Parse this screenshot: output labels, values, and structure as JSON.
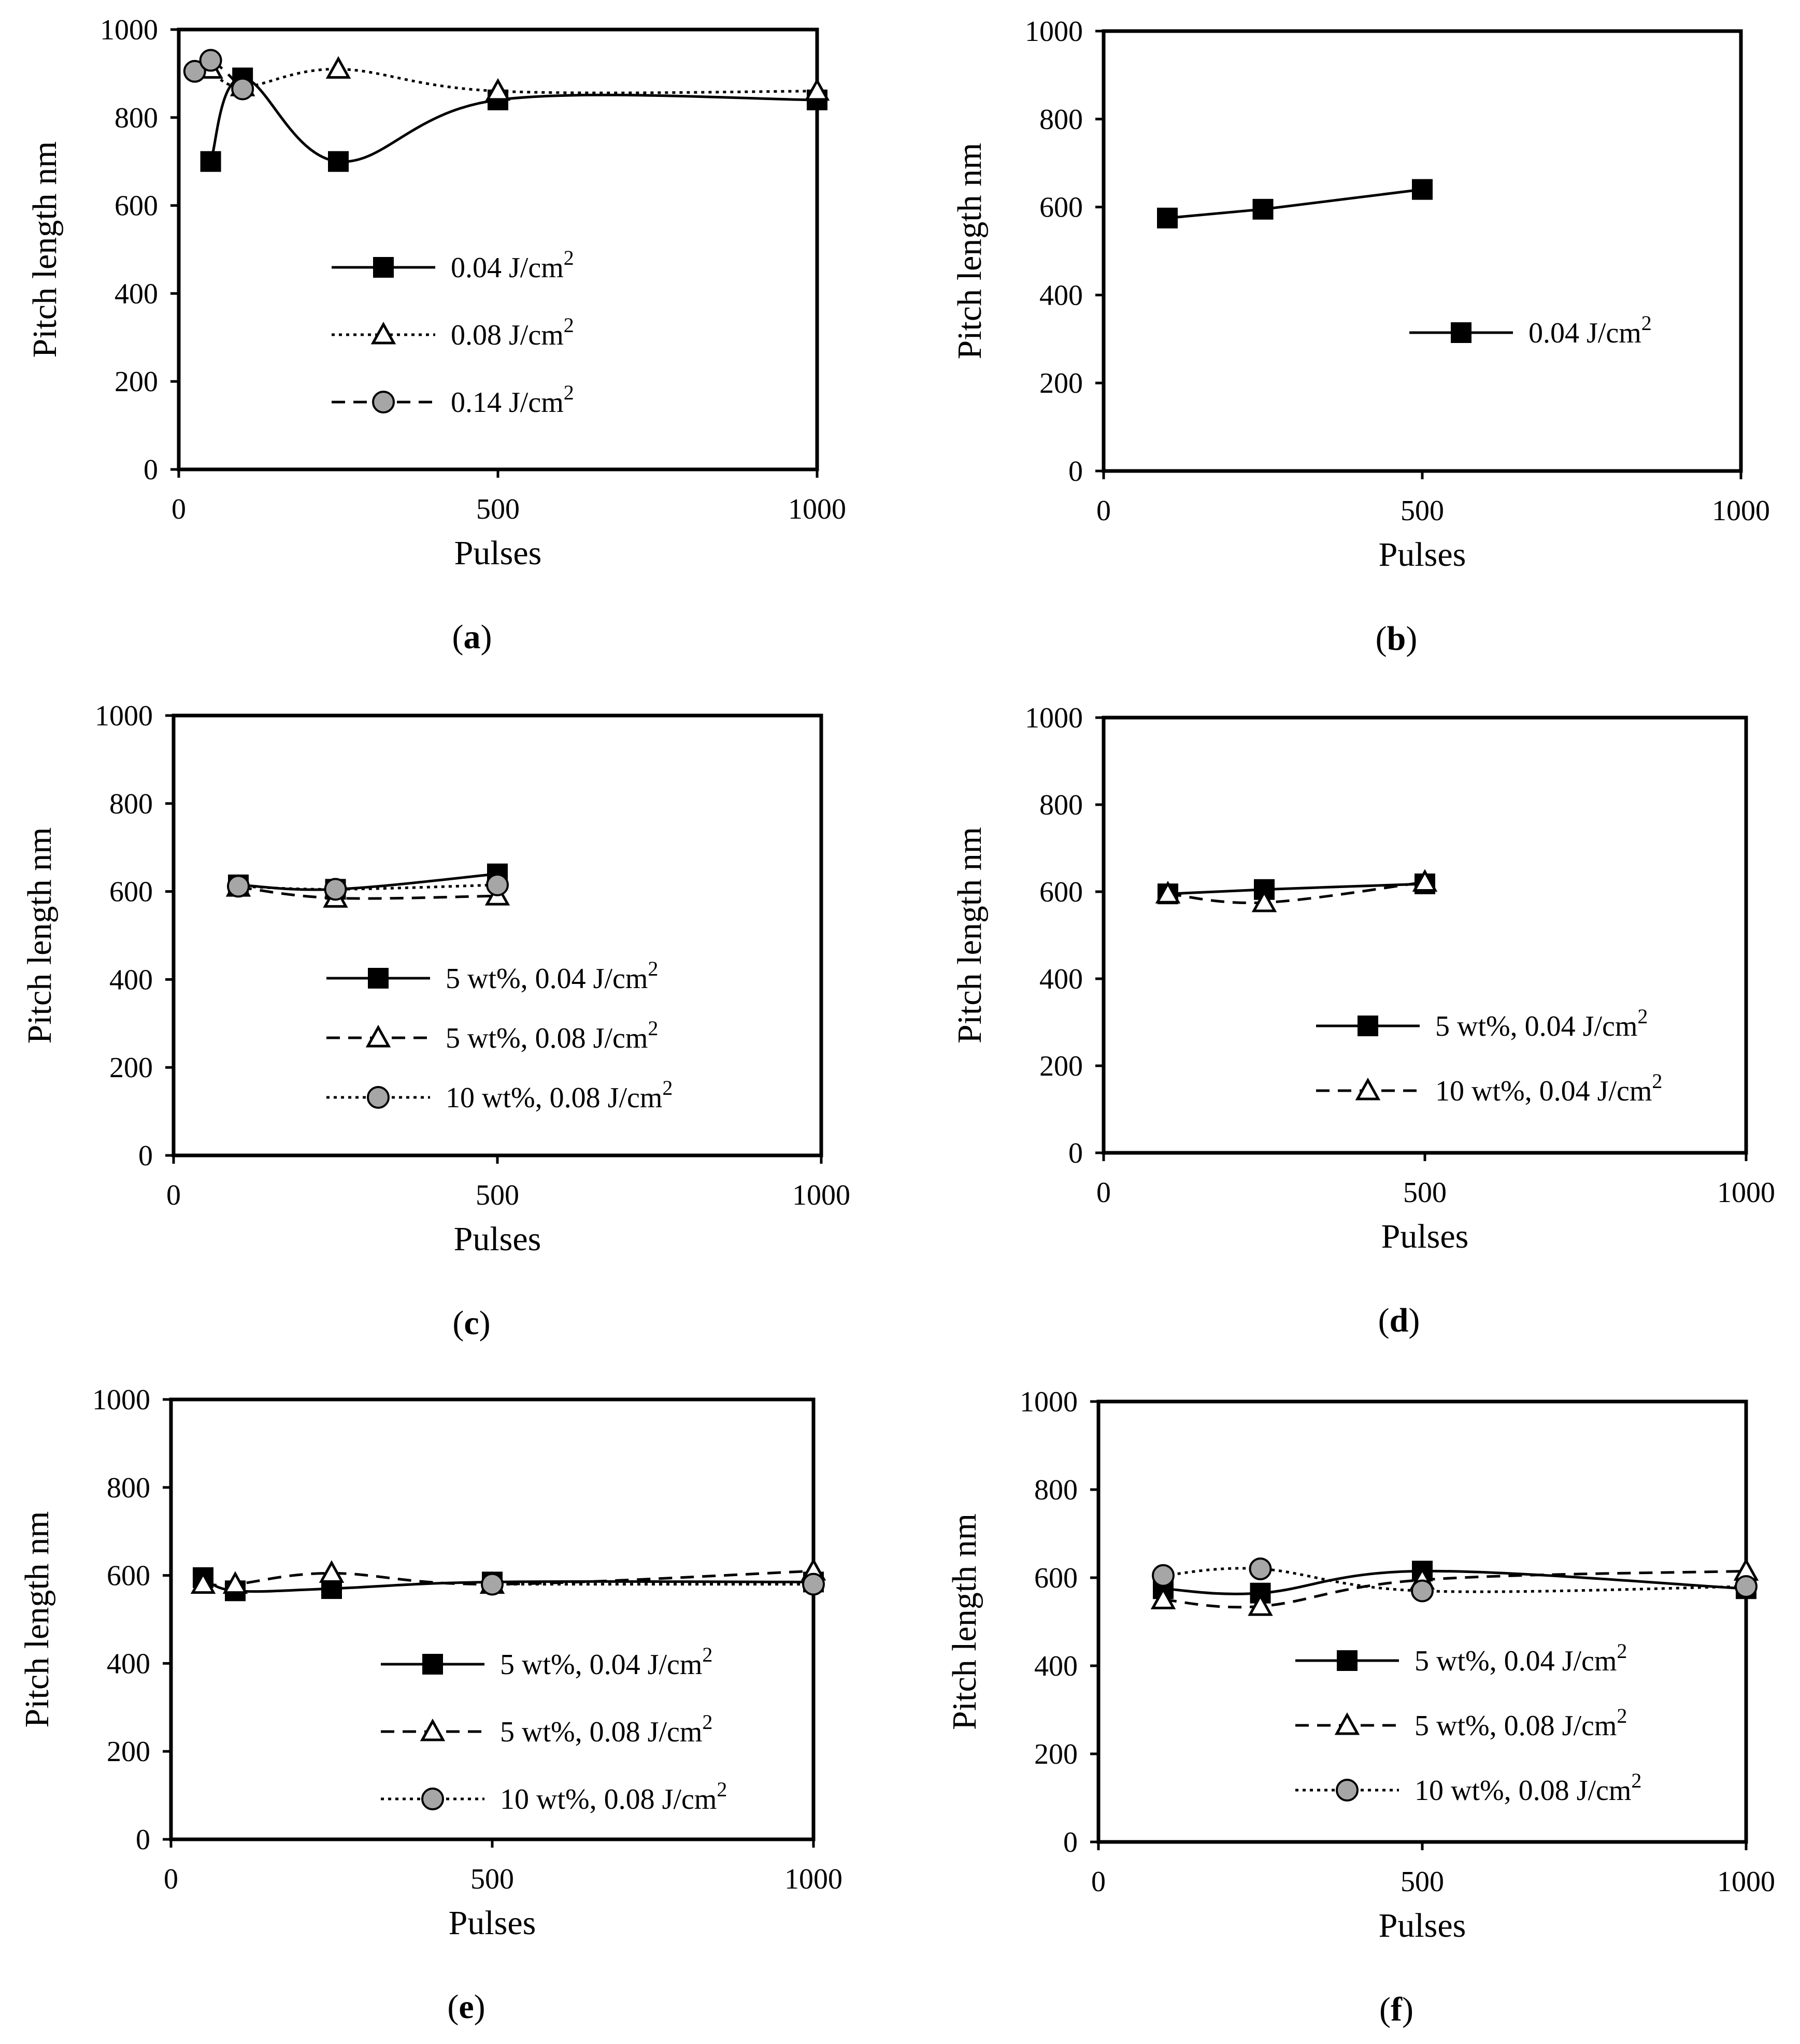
{
  "figure": {
    "panels": [
      "a",
      "b",
      "c",
      "d",
      "e",
      "f"
    ]
  },
  "chart_data": [
    {
      "id": "a",
      "type": "line",
      "panel_label": "(a)",
      "title": "",
      "xlabel": "Pulses",
      "ylabel": "Pitch length nm",
      "xlim": [
        0,
        1000
      ],
      "ylim": [
        0,
        1000
      ],
      "xticks": [
        0,
        500,
        1000
      ],
      "yticks": [
        0,
        200,
        400,
        600,
        800,
        1000
      ],
      "legend_position": "center",
      "series": [
        {
          "name": "0.04 J/cm",
          "unit_sup": "2",
          "marker": "square",
          "line": "solid",
          "curve": "smooth",
          "x": [
            50,
            100,
            250,
            500,
            1000
          ],
          "y": [
            700,
            890,
            700,
            840,
            840
          ]
        },
        {
          "name": "0.08 J/cm",
          "unit_sup": "2",
          "marker": "triangle",
          "line": "dotted",
          "curve": "smooth",
          "x": [
            50,
            100,
            250,
            500,
            1000
          ],
          "y": [
            910,
            870,
            910,
            860,
            860
          ]
        },
        {
          "name": "0.14 J/cm",
          "unit_sup": "2",
          "marker": "circle",
          "line": "dashed",
          "curve": "smooth",
          "x": [
            25,
            50,
            100
          ],
          "y": [
            905,
            930,
            865
          ]
        }
      ]
    },
    {
      "id": "b",
      "type": "line",
      "panel_label": "(b)",
      "title": "",
      "xlabel": "Pulses",
      "ylabel": "Pitch length nm",
      "xlim": [
        0,
        1000
      ],
      "ylim": [
        0,
        1000
      ],
      "xticks": [
        0,
        500,
        1000
      ],
      "yticks": [
        0,
        200,
        400,
        600,
        800,
        1000
      ],
      "legend_position": "right-center",
      "series": [
        {
          "name": "0.04 J/cm",
          "unit_sup": "2",
          "marker": "square",
          "line": "solid",
          "curve": "straight",
          "x": [
            100,
            250,
            500
          ],
          "y": [
            575,
            595,
            640
          ]
        }
      ]
    },
    {
      "id": "c",
      "type": "line",
      "panel_label": "(c)",
      "title": "",
      "xlabel": "Pulses",
      "ylabel": "Pitch length nm",
      "xlim": [
        0,
        1000
      ],
      "ylim": [
        0,
        1000
      ],
      "xticks": [
        0,
        500,
        1000
      ],
      "yticks": [
        0,
        200,
        400,
        600,
        800,
        1000
      ],
      "legend_position": "bottom-center",
      "series": [
        {
          "name": "5 wt%, 0.04 J/cm",
          "unit_sup": "2",
          "marker": "square",
          "line": "solid",
          "curve": "smooth",
          "x": [
            100,
            250,
            500
          ],
          "y": [
            615,
            605,
            640
          ]
        },
        {
          "name": "5 wt%, 0.08 J/cm",
          "unit_sup": "2",
          "marker": "triangle",
          "line": "dashed",
          "curve": "smooth",
          "x": [
            100,
            250,
            500
          ],
          "y": [
            610,
            585,
            590
          ]
        },
        {
          "name": "10 wt%, 0.08 J/cm",
          "unit_sup": "2",
          "marker": "circle",
          "line": "dotted",
          "curve": "smooth",
          "x": [
            100,
            250,
            500
          ],
          "y": [
            612,
            605,
            615
          ]
        }
      ]
    },
    {
      "id": "d",
      "type": "line",
      "panel_label": "(d)",
      "title": "",
      "xlabel": "Pulses",
      "ylabel": "Pitch length nm",
      "xlim": [
        0,
        1000
      ],
      "ylim": [
        0,
        1000
      ],
      "xticks": [
        0,
        500,
        1000
      ],
      "yticks": [
        0,
        200,
        400,
        600,
        800,
        1000
      ],
      "legend_position": "bottom-right",
      "series": [
        {
          "name": "5 wt%, 0.04 J/cm",
          "unit_sup": "2",
          "marker": "square",
          "line": "solid",
          "curve": "smooth",
          "x": [
            100,
            250,
            500
          ],
          "y": [
            595,
            605,
            618
          ]
        },
        {
          "name": "10 wt%, 0.04 J/cm",
          "unit_sup": "2",
          "marker": "triangle",
          "line": "dashed",
          "curve": "smooth",
          "x": [
            100,
            250,
            500
          ],
          "y": [
            595,
            575,
            622
          ]
        }
      ]
    },
    {
      "id": "e",
      "type": "line",
      "panel_label": "(e)",
      "title": "",
      "xlabel": "Pulses",
      "ylabel": "Pitch length nm",
      "xlim": [
        0,
        1000
      ],
      "ylim": [
        0,
        1000
      ],
      "xticks": [
        0,
        500,
        1000
      ],
      "yticks": [
        0,
        200,
        400,
        600,
        800,
        1000
      ],
      "legend_position": "bottom-right",
      "series": [
        {
          "name": "5 wt%, 0.04 J/cm",
          "unit_sup": "2",
          "marker": "square",
          "line": "solid",
          "curve": "smooth",
          "x": [
            50,
            100,
            250,
            500,
            1000
          ],
          "y": [
            595,
            565,
            570,
            585,
            585
          ]
        },
        {
          "name": "5 wt%, 0.08 J/cm",
          "unit_sup": "2",
          "marker": "triangle",
          "line": "dashed",
          "curve": "smooth",
          "x": [
            50,
            100,
            250,
            500,
            1000
          ],
          "y": [
            580,
            580,
            605,
            580,
            610
          ]
        },
        {
          "name": "10 wt%, 0.08 J/cm",
          "unit_sup": "2",
          "marker": "circle",
          "line": "dotted",
          "curve": "smooth",
          "x": [
            500,
            1000
          ],
          "y": [
            580,
            580
          ]
        }
      ]
    },
    {
      "id": "f",
      "type": "line",
      "panel_label": "(f)",
      "title": "",
      "xlabel": "Pulses",
      "ylabel": "Pitch length nm",
      "xlim": [
        0,
        1000
      ],
      "ylim": [
        0,
        1000
      ],
      "xticks": [
        0,
        500,
        1000
      ],
      "yticks": [
        0,
        200,
        400,
        600,
        800,
        1000
      ],
      "legend_position": "bottom-right",
      "series": [
        {
          "name": "5 wt%, 0.04 J/cm",
          "unit_sup": "2",
          "marker": "square",
          "line": "solid",
          "curve": "smooth",
          "x": [
            100,
            250,
            500,
            1000
          ],
          "y": [
            575,
            565,
            615,
            575
          ]
        },
        {
          "name": "5 wt%, 0.08 J/cm",
          "unit_sup": "2",
          "marker": "triangle",
          "line": "dashed",
          "curve": "smooth",
          "x": [
            100,
            250,
            500,
            1000
          ],
          "y": [
            550,
            535,
            595,
            615
          ]
        },
        {
          "name": "10 wt%, 0.08 J/cm",
          "unit_sup": "2",
          "marker": "circle",
          "line": "dotted",
          "curve": "smooth",
          "x": [
            100,
            250,
            500,
            1000
          ],
          "y": [
            605,
            620,
            570,
            580
          ]
        }
      ]
    }
  ]
}
